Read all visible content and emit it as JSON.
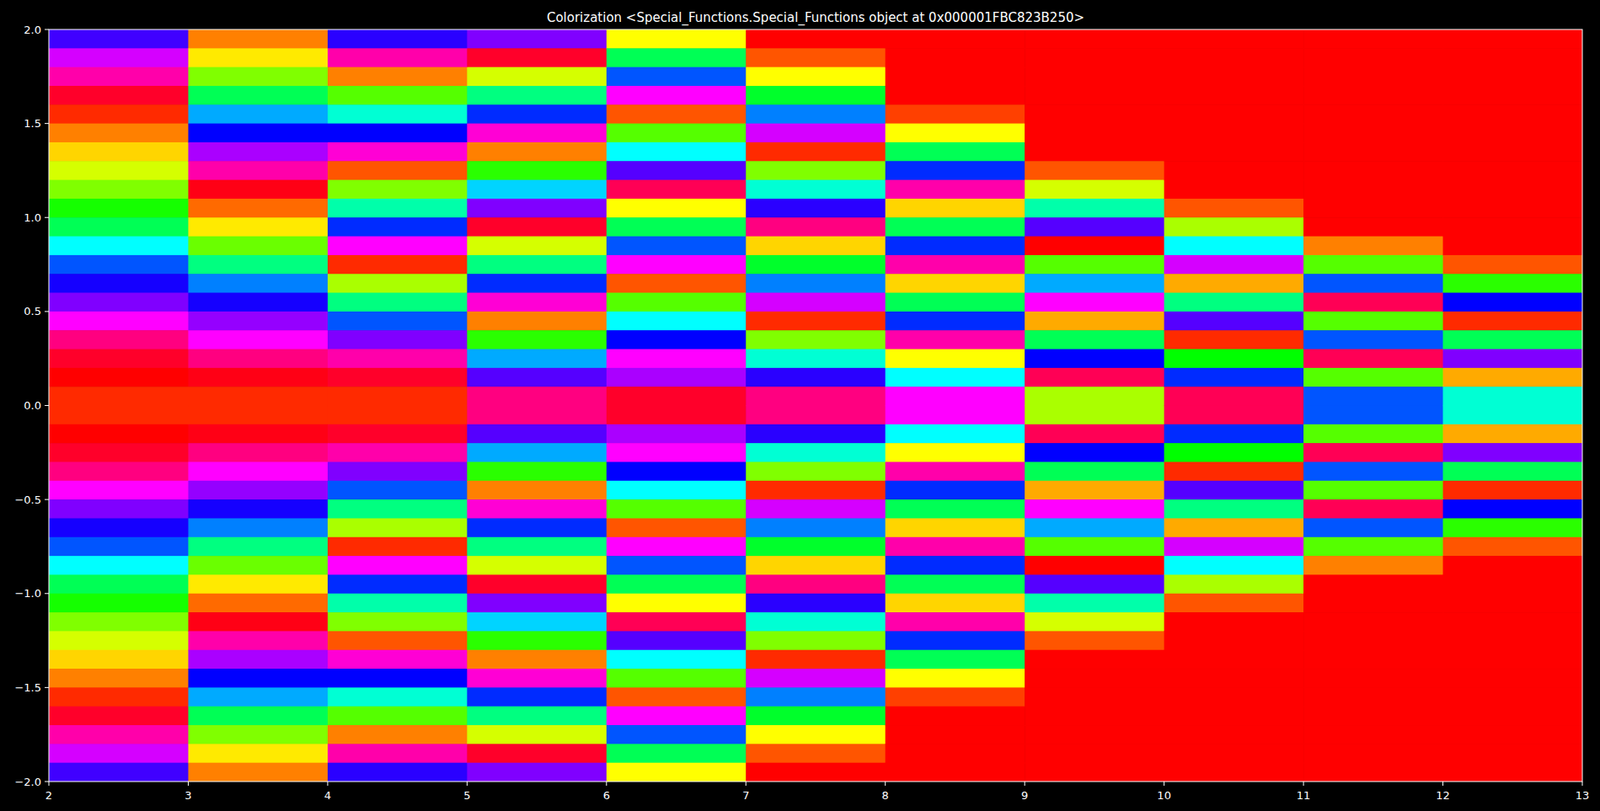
{
  "chart_data": {
    "type": "heatmap",
    "title": "Colorization <Special_Functions.Special_Functions object at 0x000001FBC823B250>",
    "xlim": [
      2,
      13
    ],
    "ylim": [
      -2,
      2
    ],
    "xticks": [
      2,
      3,
      4,
      5,
      6,
      7,
      8,
      9,
      10,
      11,
      12,
      13
    ],
    "yticks": [
      {
        "value": -2,
        "label": "−2.0"
      },
      {
        "value": -1.5,
        "label": "−1.5"
      },
      {
        "value": -1,
        "label": "−1.0"
      },
      {
        "value": -0.5,
        "label": "−0.5"
      },
      {
        "value": 0,
        "label": "0.0"
      },
      {
        "value": 0.5,
        "label": "0.5"
      },
      {
        "value": 1,
        "label": "1.0"
      },
      {
        "value": 1.5,
        "label": "1.5"
      },
      {
        "value": 2,
        "label": "2.0"
      }
    ],
    "grid": false,
    "cells": [
      [
        255,
        290,
        320,
        350,
        10,
        30,
        50,
        70,
        90,
        115,
        140,
        180,
        220,
        245,
        270,
        300,
        330,
        350,
        0,
        10,
        10,
        0,
        350,
        330,
        300,
        270,
        245,
        220,
        180,
        140,
        115,
        90,
        70,
        50,
        30,
        10,
        350,
        320,
        290,
        255
      ],
      [
        30,
        55,
        90,
        140,
        200,
        240,
        280,
        320,
        355,
        25,
        55,
        95,
        150,
        210,
        245,
        275,
        300,
        330,
        355,
        10,
        10,
        355,
        330,
        300,
        275,
        245,
        210,
        150,
        95,
        55,
        25,
        355,
        320,
        280,
        240,
        200,
        140,
        90,
        55,
        30
      ],
      [
        250,
        320,
        30,
        100,
        170,
        240,
        310,
        20,
        90,
        160,
        230,
        300,
        10,
        80,
        150,
        220,
        270,
        320,
        350,
        10,
        10,
        350,
        320,
        270,
        220,
        150,
        80,
        10,
        300,
        230,
        160,
        90,
        20,
        310,
        240,
        170,
        100,
        30,
        320,
        250
      ],
      [
        270,
        350,
        70,
        150,
        230,
        310,
        30,
        110,
        190,
        270,
        350,
        70,
        150,
        230,
        310,
        30,
        110,
        200,
        260,
        330,
        330,
        260,
        200,
        110,
        30,
        310,
        230,
        150,
        70,
        350,
        270,
        190,
        110,
        30,
        310,
        230,
        150,
        70,
        350,
        270
      ],
      [
        60,
        140,
        220,
        300,
        20,
        100,
        180,
        260,
        340,
        60,
        140,
        220,
        300,
        20,
        100,
        180,
        240,
        300,
        280,
        350,
        350,
        280,
        300,
        240,
        180,
        100,
        20,
        300,
        220,
        140,
        60,
        340,
        260,
        180,
        100,
        20,
        300,
        220,
        140,
        60
      ],
      [
        0,
        20,
        60,
        130,
        210,
        290,
        10,
        90,
        170,
        250,
        330,
        50,
        130,
        210,
        290,
        10,
        90,
        170,
        250,
        330,
        330,
        250,
        170,
        90,
        10,
        290,
        210,
        130,
        50,
        330,
        250,
        170,
        90,
        10,
        290,
        210,
        130,
        60,
        20,
        0
      ],
      [
        0,
        0,
        0,
        0,
        15,
        60,
        140,
        230,
        320,
        50,
        140,
        230,
        320,
        50,
        140,
        230,
        320,
        60,
        180,
        300,
        300,
        180,
        60,
        320,
        230,
        140,
        50,
        320,
        230,
        140,
        50,
        320,
        230,
        140,
        60,
        15,
        0,
        0,
        0,
        0
      ],
      [
        0,
        0,
        0,
        0,
        0,
        0,
        0,
        20,
        70,
        160,
        260,
        0,
        100,
        200,
        300,
        40,
        140,
        240,
        340,
        80,
        80,
        340,
        240,
        140,
        40,
        300,
        200,
        100,
        0,
        260,
        160,
        70,
        20,
        0,
        0,
        0,
        0,
        0,
        0,
        0
      ],
      [
        0,
        0,
        0,
        0,
        0,
        0,
        0,
        0,
        0,
        20,
        80,
        180,
        290,
        40,
        150,
        260,
        10,
        120,
        230,
        340,
        340,
        230,
        120,
        10,
        260,
        150,
        40,
        290,
        180,
        80,
        20,
        0,
        0,
        0,
        0,
        0,
        0,
        0,
        0,
        0
      ],
      [
        0,
        0,
        0,
        0,
        0,
        0,
        0,
        0,
        0,
        0,
        0,
        30,
        100,
        220,
        340,
        100,
        220,
        340,
        100,
        220,
        220,
        100,
        340,
        220,
        100,
        340,
        220,
        100,
        30,
        0,
        0,
        0,
        0,
        0,
        0,
        0,
        0,
        0,
        0,
        0
      ],
      [
        0,
        0,
        0,
        0,
        0,
        0,
        0,
        0,
        0,
        0,
        0,
        0,
        20,
        110,
        240,
        10,
        140,
        270,
        40,
        170,
        170,
        40,
        270,
        140,
        10,
        240,
        110,
        20,
        0,
        0,
        0,
        0,
        0,
        0,
        0,
        0,
        0,
        0,
        0,
        0
      ]
    ]
  }
}
